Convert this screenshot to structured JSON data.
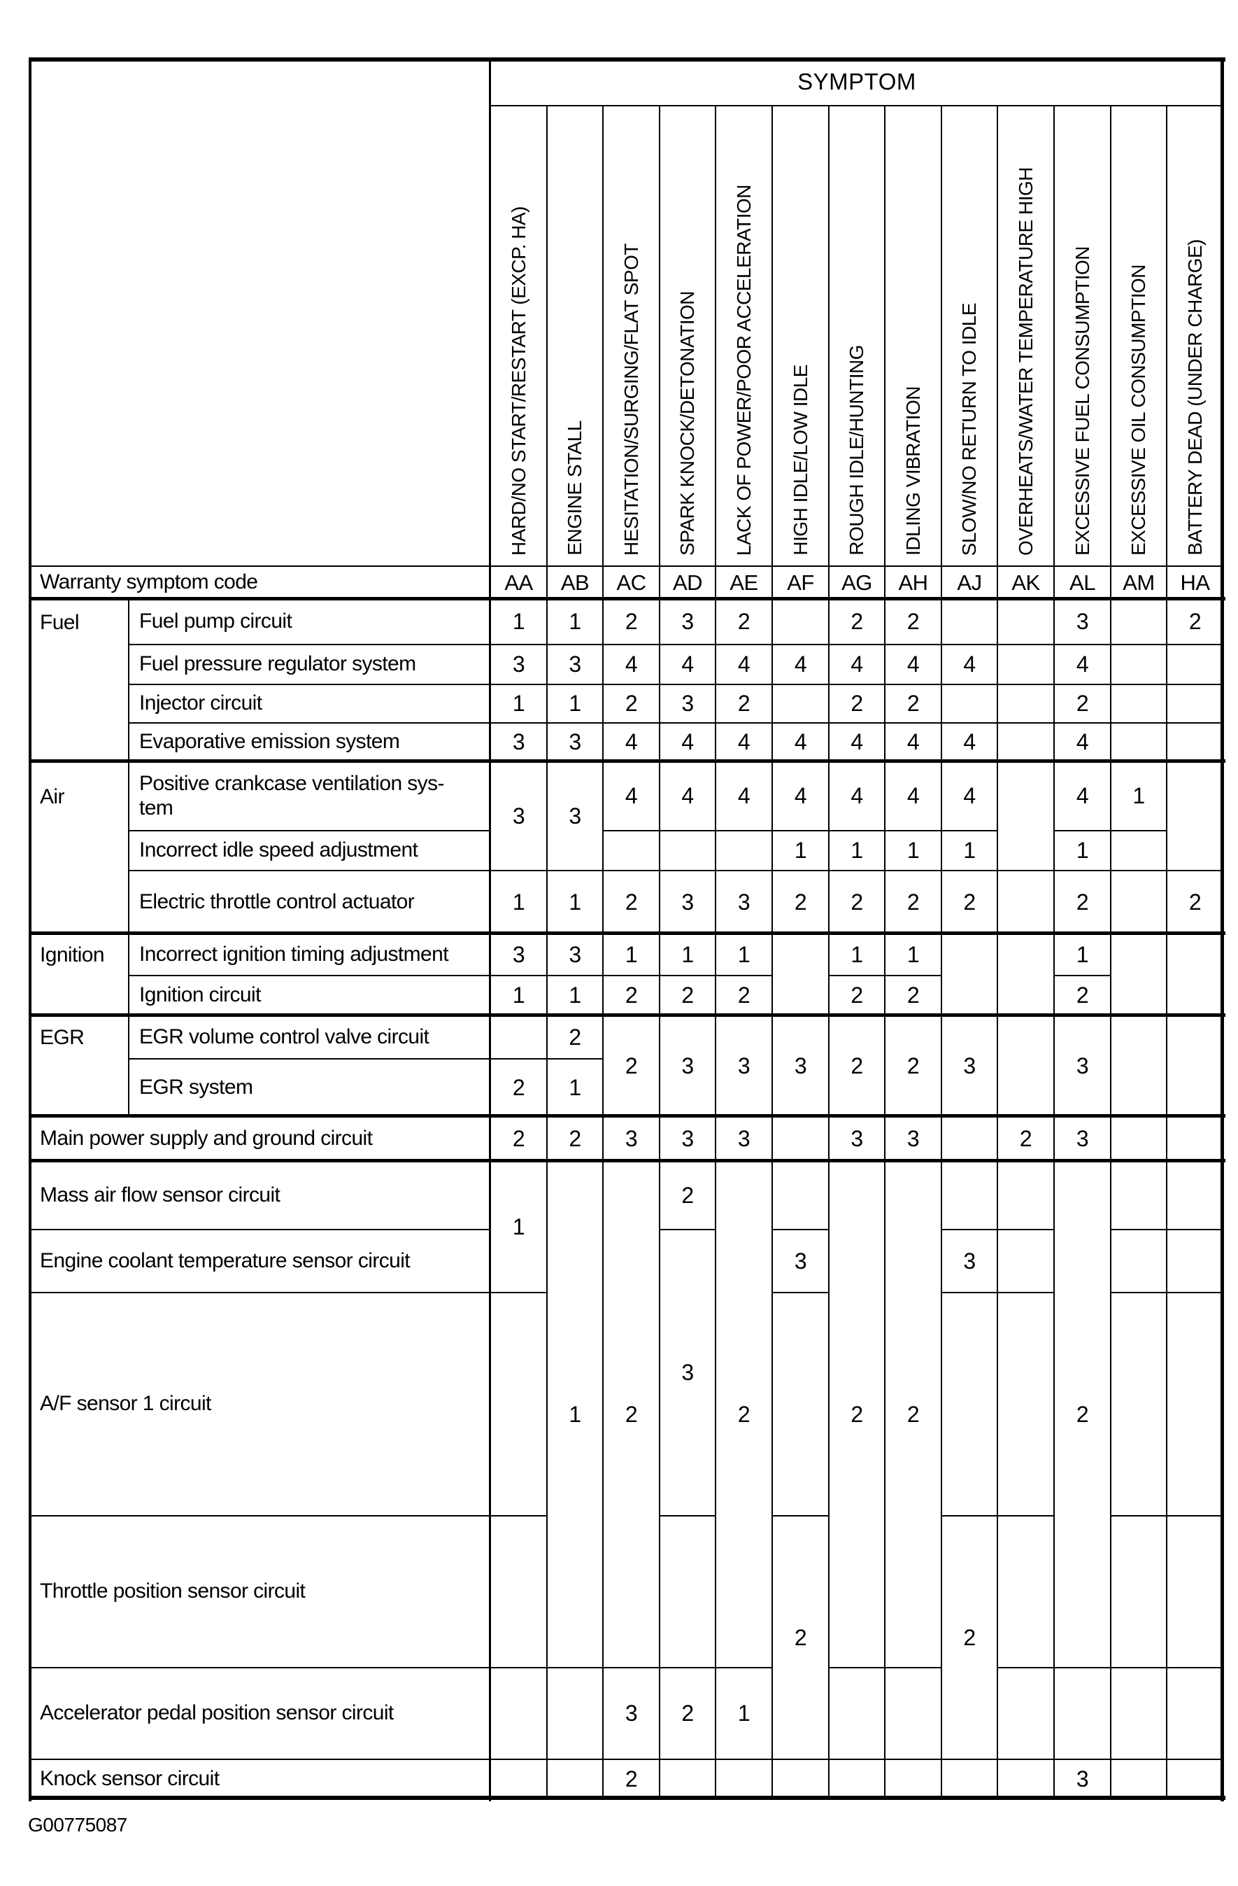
{
  "page": {
    "footer_code": "G00775087"
  },
  "table": {
    "title": "SYMPTOM",
    "columns": [
      {
        "code": "AA",
        "label": "HARD/NO START/RESTART (EXCP. HA)"
      },
      {
        "code": "AB",
        "label": "ENGINE STALL"
      },
      {
        "code": "AC",
        "label": "HESITATION/SURGING/FLAT SPOT"
      },
      {
        "code": "AD",
        "label": "SPARK KNOCK/DETONATION"
      },
      {
        "code": "AE",
        "label": "LACK OF POWER/POOR ACCELERATION"
      },
      {
        "code": "AF",
        "label": "HIGH IDLE/LOW IDLE"
      },
      {
        "code": "AG",
        "label": "ROUGH IDLE/HUNTING"
      },
      {
        "code": "AH",
        "label": "IDLING VIBRATION"
      },
      {
        "code": "AJ",
        "label": "SLOW/NO RETURN TO IDLE"
      },
      {
        "code": "AK",
        "label": "OVERHEATS/WATER TEMPERATURE HIGH"
      },
      {
        "code": "AL",
        "label": "EXCESSIVE FUEL CONSUMPTION"
      },
      {
        "code": "AM",
        "label": "EXCESSIVE OIL CONSUMPTION"
      },
      {
        "code": "HA",
        "label": "BATTERY DEAD (UNDER CHARGE)"
      }
    ],
    "groups": [
      {
        "label": "Fuel",
        "start": 1,
        "count": 4
      },
      {
        "label": "Air",
        "start": 5,
        "count": 3
      },
      {
        "label": "Ignition",
        "start": 8,
        "count": 2
      },
      {
        "label": "EGR",
        "start": 10,
        "count": 2
      }
    ],
    "rows": [
      {
        "label": "Warranty symptom code",
        "full": true,
        "type": "codes"
      },
      {
        "label": "Fuel pump circuit",
        "values": [
          "1",
          "1",
          "2",
          "3",
          "2",
          "",
          "2",
          "2",
          "",
          "",
          "3",
          "",
          "2"
        ]
      },
      {
        "label": "Fuel pressure regulator system",
        "values": [
          "3",
          "3",
          "4",
          "4",
          "4",
          "4",
          "4",
          "4",
          "4",
          "",
          "4",
          "",
          ""
        ]
      },
      {
        "label": "Injector circuit",
        "values": [
          "1",
          "1",
          "2",
          "3",
          "2",
          "",
          "2",
          "2",
          "",
          "",
          "2",
          "",
          ""
        ]
      },
      {
        "label": "Evaporative emission system",
        "values": [
          "3",
          "3",
          "4",
          "4",
          "4",
          "4",
          "4",
          "4",
          "4",
          "",
          "4",
          "",
          ""
        ]
      },
      {
        "label": "Positive crankcase ventilation sys-\ntem",
        "values": [
          null,
          null,
          "4",
          "4",
          "4",
          "4",
          "4",
          "4",
          "4",
          null,
          "4",
          "1",
          null
        ]
      },
      {
        "label": "Incorrect idle speed adjustment",
        "values": [
          null,
          null,
          "",
          "",
          "",
          "1",
          "1",
          "1",
          "1",
          null,
          "1",
          "",
          null
        ]
      },
      {
        "label": "Electric throttle control actuator",
        "values": [
          "1",
          "1",
          "2",
          "3",
          "3",
          "2",
          "2",
          "2",
          "2",
          "",
          "2",
          "",
          "2"
        ]
      },
      {
        "label": "Incorrect ignition timing adjustment",
        "values": [
          "3",
          "3",
          "1",
          "1",
          "1",
          null,
          "1",
          "1",
          null,
          null,
          "1",
          null,
          null
        ]
      },
      {
        "label": "Ignition circuit",
        "values": [
          "1",
          "1",
          "2",
          "2",
          "2",
          null,
          "2",
          "2",
          null,
          null,
          "2",
          null,
          null
        ]
      },
      {
        "label": "EGR volume control valve circuit",
        "values": [
          "",
          "2",
          null,
          null,
          null,
          null,
          null,
          null,
          null,
          null,
          null,
          null,
          null
        ]
      },
      {
        "label": "EGR system",
        "values": [
          "2",
          "1",
          null,
          null,
          null,
          null,
          null,
          null,
          null,
          null,
          null,
          null,
          null
        ]
      },
      {
        "label": "Main power supply and ground circuit",
        "full": true,
        "values": [
          "2",
          "2",
          "3",
          "3",
          "3",
          "",
          "3",
          "3",
          "",
          "2",
          "3",
          "",
          ""
        ]
      },
      {
        "label": "Mass air flow sensor circuit",
        "full": true,
        "values": [
          null,
          null,
          null,
          "2",
          null,
          "",
          null,
          null,
          "",
          "",
          null,
          "",
          ""
        ]
      },
      {
        "label": "Engine coolant temperature sensor circuit",
        "full": true,
        "values": [
          null,
          null,
          null,
          null,
          null,
          "3",
          null,
          null,
          "3",
          "",
          null,
          "",
          ""
        ]
      },
      {
        "label": "A/F sensor 1 circuit",
        "full": true,
        "values": [
          "",
          null,
          null,
          null,
          null,
          "",
          null,
          null,
          "",
          "",
          null,
          "",
          ""
        ]
      },
      {
        "label": "Throttle position sensor circuit",
        "full": true,
        "values": [
          "",
          null,
          null,
          "",
          null,
          null,
          null,
          null,
          null,
          "",
          null,
          "",
          ""
        ]
      },
      {
        "label": "Accelerator pedal position sensor circuit",
        "full": true,
        "values": [
          "",
          "",
          "3",
          "2",
          "1",
          null,
          "",
          "",
          null,
          "",
          "",
          "",
          ""
        ]
      },
      {
        "label": "Knock sensor circuit",
        "full": true,
        "values": [
          "",
          "",
          "2",
          "",
          "",
          "",
          "",
          "",
          "",
          "",
          "3",
          "",
          ""
        ]
      }
    ],
    "merges": [
      {
        "row": 5,
        "col": 0,
        "rowspan": 2,
        "value": "3"
      },
      {
        "row": 5,
        "col": 1,
        "rowspan": 2,
        "value": "3"
      },
      {
        "row": 5,
        "col": 9,
        "rowspan": 2,
        "value": ""
      },
      {
        "row": 5,
        "col": 12,
        "rowspan": 2,
        "value": ""
      },
      {
        "row": 8,
        "col": 5,
        "rowspan": 2,
        "value": ""
      },
      {
        "row": 8,
        "col": 8,
        "rowspan": 2,
        "value": ""
      },
      {
        "row": 8,
        "col": 9,
        "rowspan": 2,
        "value": ""
      },
      {
        "row": 8,
        "col": 11,
        "rowspan": 2,
        "value": ""
      },
      {
        "row": 8,
        "col": 12,
        "rowspan": 2,
        "value": ""
      },
      {
        "row": 10,
        "col": 2,
        "rowspan": 2,
        "value": "2"
      },
      {
        "row": 10,
        "col": 3,
        "rowspan": 2,
        "value": "3"
      },
      {
        "row": 10,
        "col": 4,
        "rowspan": 2,
        "value": "3"
      },
      {
        "row": 10,
        "col": 5,
        "rowspan": 2,
        "value": "3"
      },
      {
        "row": 10,
        "col": 6,
        "rowspan": 2,
        "value": "2"
      },
      {
        "row": 10,
        "col": 7,
        "rowspan": 2,
        "value": "2"
      },
      {
        "row": 10,
        "col": 8,
        "rowspan": 2,
        "value": "3"
      },
      {
        "row": 10,
        "col": 9,
        "rowspan": 2,
        "value": ""
      },
      {
        "row": 10,
        "col": 10,
        "rowspan": 2,
        "value": "3"
      },
      {
        "row": 10,
        "col": 11,
        "rowspan": 2,
        "value": ""
      },
      {
        "row": 10,
        "col": 12,
        "rowspan": 2,
        "value": ""
      },
      {
        "row": 13,
        "col": 0,
        "rowspan": 2,
        "value": "1"
      },
      {
        "row": 13,
        "col": 1,
        "rowspan": 4,
        "value": "1"
      },
      {
        "row": 13,
        "col": 2,
        "rowspan": 4,
        "value": "2"
      },
      {
        "row": 13,
        "col": 4,
        "rowspan": 4,
        "value": "2"
      },
      {
        "row": 13,
        "col": 6,
        "rowspan": 4,
        "value": "2"
      },
      {
        "row": 13,
        "col": 7,
        "rowspan": 4,
        "value": "2"
      },
      {
        "row": 13,
        "col": 10,
        "rowspan": 4,
        "value": "2"
      },
      {
        "row": 14,
        "col": 3,
        "rowspan": 2,
        "value": "3"
      },
      {
        "row": 16,
        "col": 5,
        "rowspan": 2,
        "value": "2"
      },
      {
        "row": 16,
        "col": 8,
        "rowspan": 2,
        "value": "2"
      }
    ]
  }
}
